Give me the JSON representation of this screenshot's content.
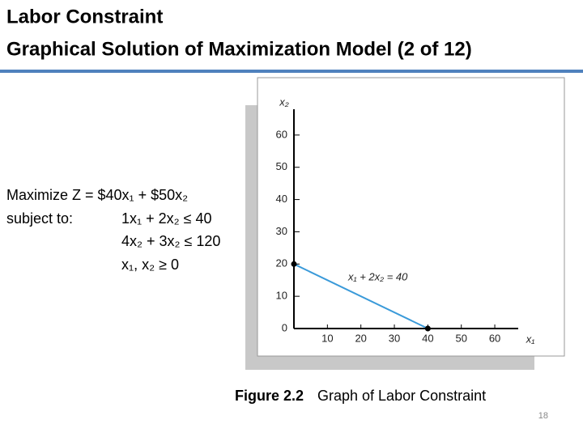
{
  "header": {
    "title": "Labor Constraint",
    "subtitle": "Graphical Solution of Maximization Model (2 of 12)"
  },
  "body": {
    "objective": "Maximize Z = $40x₁ + $50x₂",
    "subject_to": "subject to:",
    "constraints": [
      "1x₁ + 2x₂ ≤ 40",
      "4x₂ + 3x₂ ≤ 120",
      "x₁, x₂ ≥ 0"
    ]
  },
  "chart_data": {
    "type": "line",
    "x_label": "x₁",
    "y_label": "x₂",
    "x": [
      0,
      40
    ],
    "series": [
      {
        "name": "x₁ + 2x₂ = 40",
        "color": "#3a9ad9",
        "values": [
          20,
          0
        ]
      }
    ],
    "xlim": [
      0,
      67
    ],
    "ylim": [
      0,
      68
    ],
    "xticks": [
      10,
      20,
      30,
      40,
      50,
      60
    ],
    "yticks": [
      0,
      10,
      20,
      30,
      40,
      50,
      60
    ]
  },
  "caption": {
    "label": "Figure 2.2",
    "text": "Graph of Labor Constraint"
  },
  "page_number": "18"
}
